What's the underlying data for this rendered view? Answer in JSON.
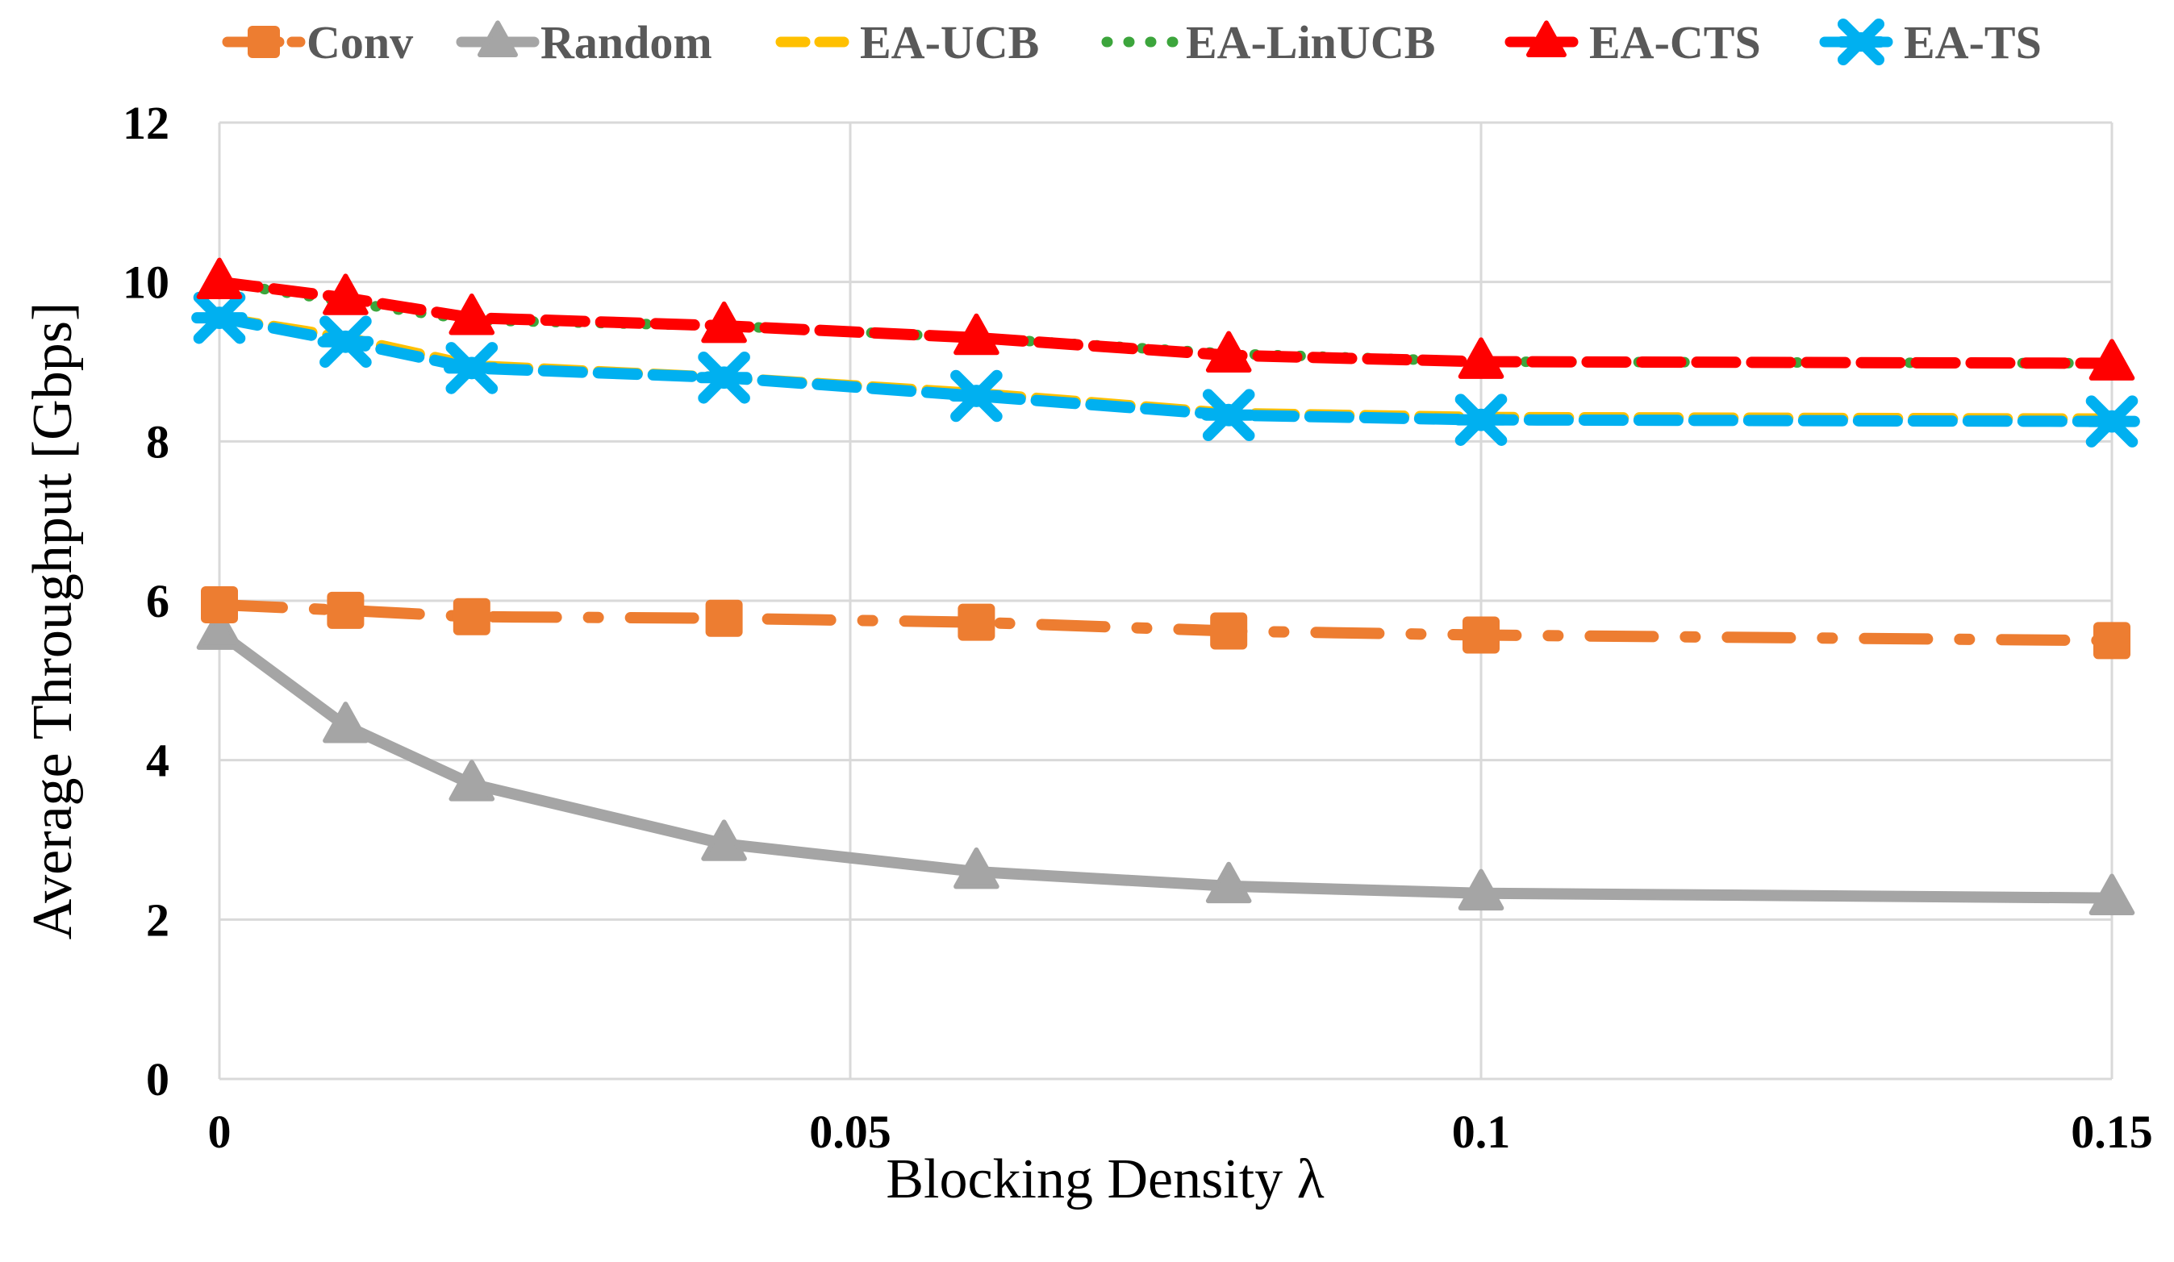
{
  "chart_data": {
    "type": "line",
    "title": "",
    "xlabel": "Blocking Density  λ",
    "ylabel": "Average Throughput [Gbps]",
    "xlim": [
      0,
      0.15
    ],
    "ylim": [
      0,
      12
    ],
    "x_ticks": [
      "0",
      "0.05",
      "0.1",
      "0.15"
    ],
    "y_ticks": [
      "0",
      "2",
      "4",
      "6",
      "8",
      "10",
      "12"
    ],
    "grid": true,
    "legend_position": "top",
    "x": [
      0,
      0.01,
      0.02,
      0.04,
      0.06,
      0.08,
      0.1,
      0.15
    ],
    "series": [
      {
        "name": "Conv",
        "color": "#ED7D31",
        "marker": "square",
        "line": "dash-dot",
        "values": [
          5.95,
          5.88,
          5.8,
          5.78,
          5.73,
          5.62,
          5.57,
          5.5
        ]
      },
      {
        "name": "Random",
        "color": "#A5A5A5",
        "marker": "triangle",
        "line": "solid",
        "values": [
          5.6,
          4.43,
          3.7,
          2.95,
          2.6,
          2.42,
          2.33,
          2.27
        ]
      },
      {
        "name": "EA-UCB",
        "color": "#FFC000",
        "marker": "none",
        "line": "dash",
        "values": [
          9.55,
          9.3,
          8.95,
          8.8,
          8.6,
          8.35,
          8.3,
          8.28
        ]
      },
      {
        "name": "EA-LinUCB",
        "color": "#3CA53C",
        "marker": "none",
        "line": "dot",
        "values": [
          10.0,
          9.75,
          9.52,
          9.45,
          9.3,
          9.1,
          9.0,
          8.98
        ]
      },
      {
        "name": "EA-CTS",
        "color": "#FF0000",
        "marker": "triangle",
        "line": "dash",
        "values": [
          10.0,
          9.8,
          9.55,
          9.45,
          9.3,
          9.08,
          9.0,
          8.98
        ]
      },
      {
        "name": "EA-TS",
        "color": "#00B0F0",
        "marker": "star",
        "line": "dash",
        "values": [
          9.55,
          9.25,
          8.92,
          8.8,
          8.57,
          8.33,
          8.27,
          8.25
        ]
      }
    ]
  }
}
